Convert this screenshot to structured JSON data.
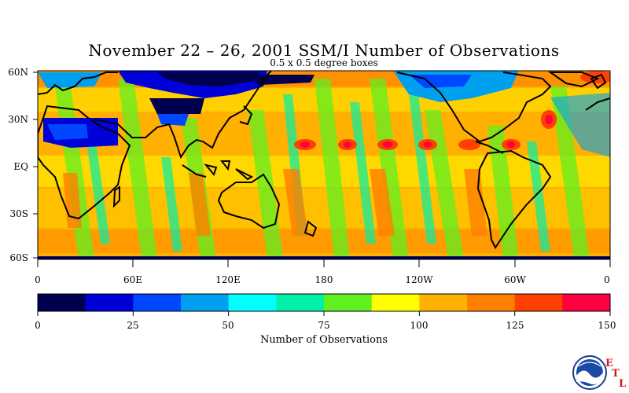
{
  "title": "November 22 – 26, 2001 SSM/I Number of Observations",
  "subtitle": "0.5 x 0.5 degree boxes",
  "lat_labels": [
    "60N",
    "30N",
    "EQ",
    "30S",
    "60S"
  ],
  "lon_labels": [
    "0",
    "60E",
    "120E",
    "180",
    "120W",
    "60W",
    "0"
  ],
  "colorbar": {
    "title": "Number of Observations",
    "tick_labels": [
      "0",
      "25",
      "50",
      "75",
      "100",
      "125",
      "150"
    ],
    "range": [
      0,
      150
    ],
    "colors": [
      "#00004e",
      "#0000d8",
      "#0048ff",
      "#00a0f0",
      "#00ffff",
      "#00f0a8",
      "#60f020",
      "#ffff00",
      "#ffb000",
      "#ff8000",
      "#ff4000",
      "#ff0040"
    ]
  },
  "map": {
    "projection": "equirectangular",
    "lon_range": [
      0,
      360
    ],
    "lat_range": [
      -65,
      60
    ],
    "land_outline_color": "#000000"
  },
  "logo": {
    "icon": "noaa-logo",
    "letters": [
      "E",
      "T",
      "L"
    ]
  }
}
